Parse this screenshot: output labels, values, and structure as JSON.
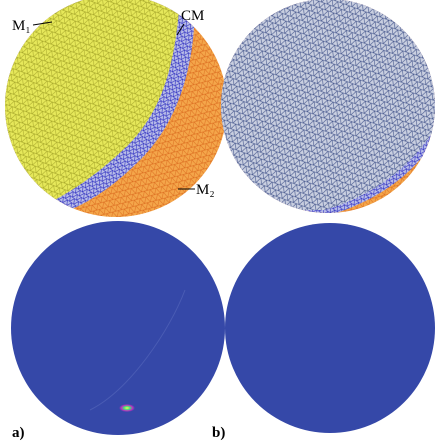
{
  "labels": {
    "m1": "M₁",
    "cm": "CM",
    "m2": "M₂"
  },
  "panels": [
    "a)",
    "b)"
  ]
}
